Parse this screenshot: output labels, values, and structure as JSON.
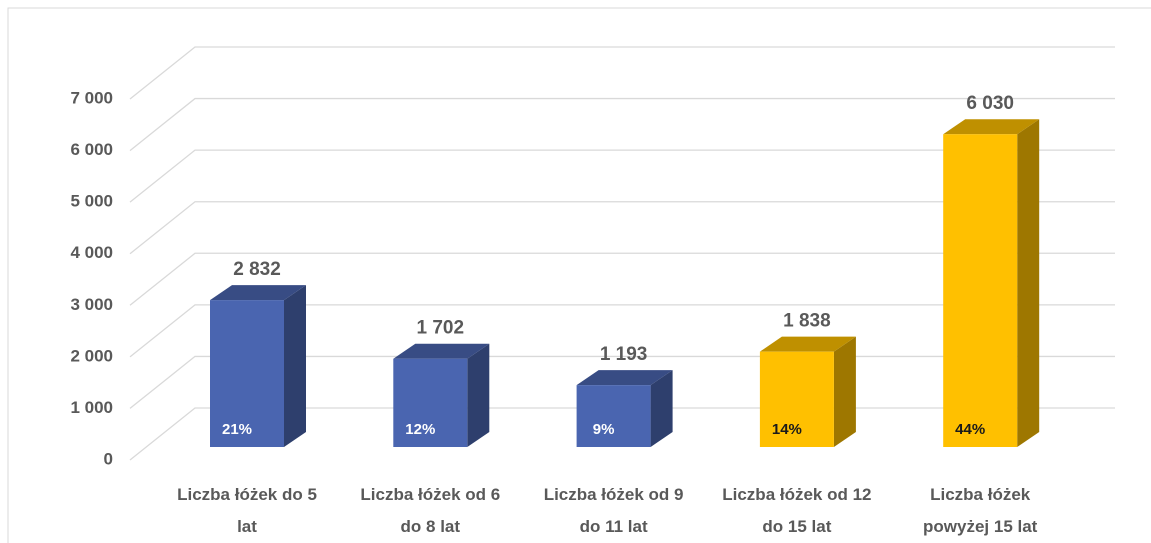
{
  "chart_data": {
    "type": "bar3d",
    "categories": [
      "Liczba łóżek do 5 lat",
      "Liczba łóżek od 6 do 8 lat",
      "Liczba łóżek od 9 do 11 lat",
      "Liczba łóżek od 12 do 15 lat",
      "Liczba łóżek powyżej 15 lat"
    ],
    "values": [
      2832,
      1702,
      1193,
      1838,
      6030
    ],
    "value_labels": [
      "2 832",
      "1 702",
      "1 193",
      "1 838",
      "6 030"
    ],
    "shares": [
      21,
      12,
      9,
      14,
      44
    ],
    "share_labels": [
      "21%",
      "12%",
      "9%",
      "14%",
      "44%"
    ],
    "colors": [
      "#4a65b0",
      "#4a65b0",
      "#4a65b0",
      "#ffc000",
      "#ffc000"
    ],
    "label_colors": [
      "#ffffff",
      "#ffffff",
      "#ffffff",
      "#1a1a1a",
      "#1a1a1a"
    ],
    "ylim": [
      0,
      7000
    ],
    "yticks": [
      0,
      {
        "value": 1000,
        "label": "1 000"
      },
      {
        "value": 2000,
        "label": "2 000"
      },
      {
        "value": 3000,
        "label": "3 000"
      },
      {
        "value": 4000,
        "label": "4 000"
      },
      {
        "value": 5000,
        "label": "5 000"
      },
      {
        "value": 6000,
        "label": "6 000"
      },
      {
        "value": 7000,
        "label": "7 000"
      }
    ],
    "grid": true
  }
}
